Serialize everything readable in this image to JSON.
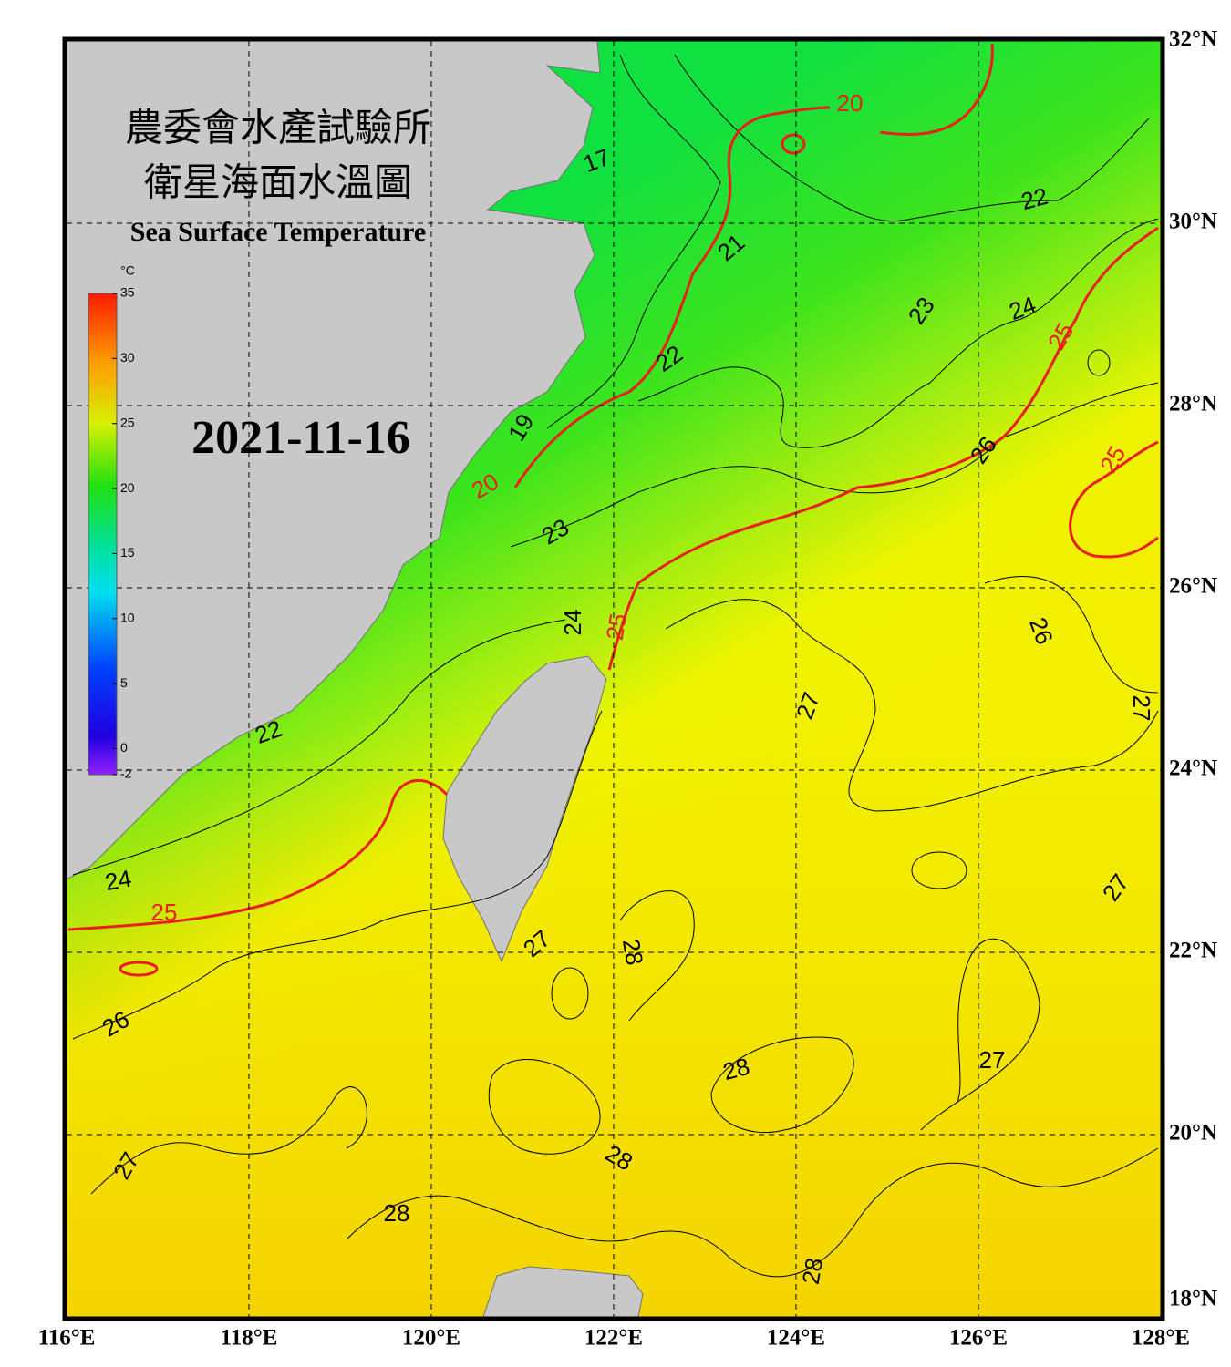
{
  "title_line1": "農委會水產試驗所",
  "title_line2": "衛星海面水溫圖",
  "subtitle": "Sea Surface Temperature",
  "date": "2021-11-16",
  "colorbar": {
    "unit": "°C",
    "ticks": [
      35,
      30,
      25,
      20,
      15,
      10,
      5,
      0,
      -2
    ]
  },
  "lon_ticks": [
    {
      "value": 116,
      "label": "116°E"
    },
    {
      "value": 118,
      "label": "118°E"
    },
    {
      "value": 120,
      "label": "120°E"
    },
    {
      "value": 122,
      "label": "122°E"
    },
    {
      "value": 124,
      "label": "124°E"
    },
    {
      "value": 126,
      "label": "126°E"
    },
    {
      "value": 128,
      "label": "128°E"
    }
  ],
  "lat_ticks": [
    {
      "value": 32,
      "label": "32°N"
    },
    {
      "value": 30,
      "label": "30°N"
    },
    {
      "value": 28,
      "label": "28°N"
    },
    {
      "value": 26,
      "label": "26°N"
    },
    {
      "value": 24,
      "label": "24°N"
    },
    {
      "value": 22,
      "label": "22°N"
    },
    {
      "value": 20,
      "label": "20°N"
    },
    {
      "value": 18,
      "label": "18°N"
    }
  ],
  "contour_labels": [
    17,
    20,
    22,
    21,
    23,
    24,
    25,
    22,
    19,
    20,
    26,
    25,
    23,
    24,
    25,
    26,
    27,
    27,
    22,
    24,
    25,
    27,
    27,
    28,
    26,
    28,
    27,
    28,
    27,
    28,
    28
  ]
}
